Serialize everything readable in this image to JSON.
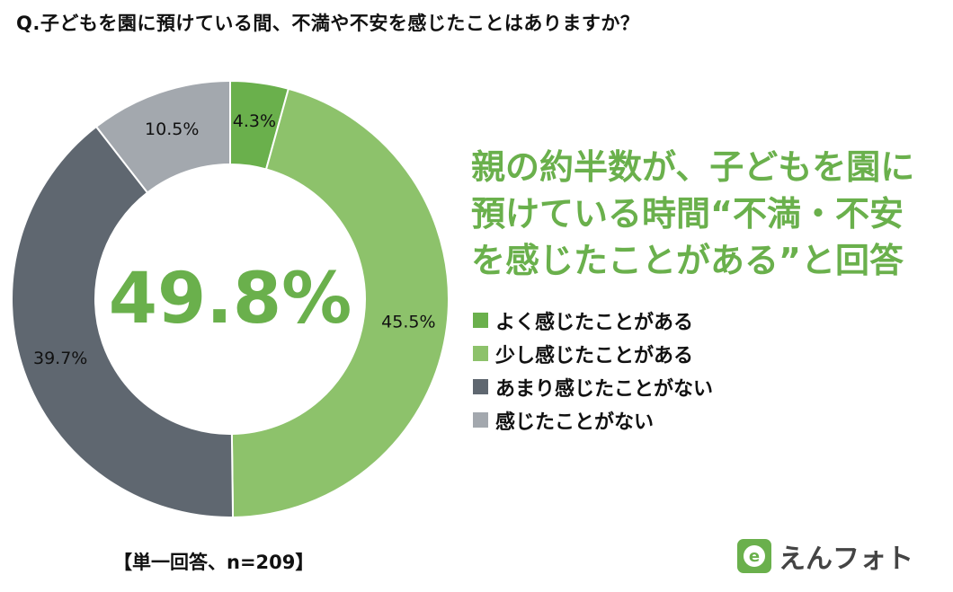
{
  "question": "Q.子どもを園に預けている間、不満や不安を感じたことはありますか？",
  "headline": [
    "親の約半数が、子どもを園に",
    "預けている時間“不満・不安",
    "を感じたことがある”と回答"
  ],
  "center_label": "49.8%",
  "sample_note": "【単一回答、n=209】",
  "logo_text": "えんフォト",
  "colors": {
    "accent": "#6ab04c"
  },
  "chart_data": {
    "type": "pie",
    "donut": true,
    "title": "",
    "categories": [
      "よく感じたことがある",
      "少し感じたことがある",
      "あまり感じたことがない",
      "感じたことがない"
    ],
    "values": [
      4.3,
      45.5,
      39.7,
      10.5
    ],
    "labels": [
      "4.3%",
      "45.5%",
      "39.7%",
      "10.5%"
    ],
    "colors": [
      "#6ab04c",
      "#8dc26b",
      "#5f6770",
      "#a3a8ae"
    ],
    "legend": "right"
  }
}
